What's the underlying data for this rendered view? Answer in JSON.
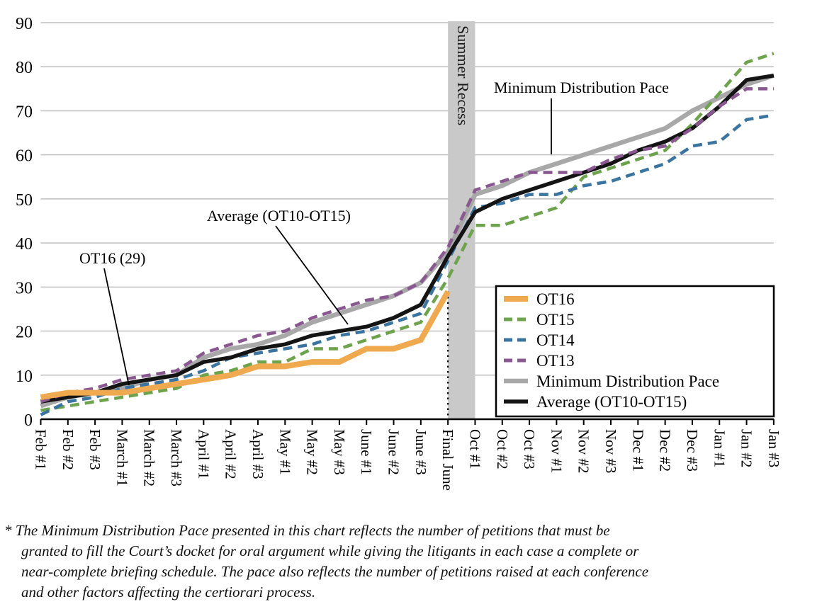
{
  "chart_data": {
    "type": "line",
    "title": "",
    "xlabel": "",
    "ylabel": "",
    "ylim": [
      0,
      90
    ],
    "ytick_step": 10,
    "grid": true,
    "legend_position": "inside-right",
    "categories": [
      "Feb #1",
      "Feb #2",
      "Feb #3",
      "March #1",
      "March #2",
      "March #3",
      "April #1",
      "April #2",
      "April #3",
      "May #1",
      "May #2",
      "May #3",
      "June #1",
      "June #2",
      "June #3",
      "Final June",
      "Oct #1",
      "Oct #2",
      "Oct #3",
      "Nov #1",
      "Nov #2",
      "Nov #3",
      "Dec #1",
      "Dec #2",
      "Dec #3",
      "Jan #1",
      "Jan #2",
      "Jan #3"
    ],
    "series": [
      {
        "name": "OT16",
        "color": "#EFA94F",
        "style": "solid",
        "width": 8,
        "values": [
          5,
          6,
          6,
          6,
          7,
          8,
          9,
          10,
          12,
          12,
          13,
          13,
          16,
          16,
          18,
          29
        ]
      },
      {
        "name": "OT15",
        "color": "#6DA34D",
        "style": "dashed",
        "width": 4.5,
        "values": [
          2,
          3,
          4,
          5,
          6,
          7,
          10,
          11,
          13,
          13,
          16,
          16,
          18,
          20,
          22,
          32,
          44,
          44,
          46,
          48,
          55,
          57,
          59,
          61,
          67,
          74,
          81,
          83
        ]
      },
      {
        "name": "OT14",
        "color": "#3C74A0",
        "style": "dashed",
        "width": 4.5,
        "values": [
          1,
          4,
          5,
          7,
          8,
          9,
          11,
          14,
          15,
          16,
          17,
          19,
          20,
          22,
          24,
          36,
          48,
          49,
          51,
          51,
          53,
          54,
          56,
          58,
          62,
          63,
          68,
          69
        ]
      },
      {
        "name": "OT13",
        "color": "#8A5890",
        "style": "dashed",
        "width": 4.5,
        "values": [
          4,
          6,
          7,
          9,
          10,
          11,
          15,
          17,
          19,
          20,
          23,
          25,
          27,
          28,
          31,
          39,
          52,
          54,
          56,
          56,
          56,
          59,
          61,
          62,
          66,
          71,
          75,
          75
        ]
      },
      {
        "name": "Minimum Distribution Pace",
        "color": "#A8A8A8",
        "style": "solid",
        "width": 6.5,
        "values": [
          3,
          5,
          6,
          7,
          9,
          10,
          14,
          16,
          17,
          19,
          22,
          24,
          26,
          28,
          31,
          38,
          51,
          53,
          56,
          58,
          60,
          62,
          64,
          66,
          70,
          73,
          76,
          78
        ]
      },
      {
        "name": "Average (OT10-OT15)",
        "color": "#141414",
        "style": "solid",
        "width": 5.5,
        "values": [
          4,
          5,
          6,
          8,
          9,
          10,
          13,
          14,
          16,
          17,
          19,
          20,
          21,
          23,
          26,
          37,
          47,
          50,
          52,
          54,
          56,
          58,
          61,
          63,
          66,
          71,
          77,
          78
        ]
      }
    ],
    "band": {
      "label": "Summer Recess",
      "from_category": "Final June",
      "to_category": "Oct #1",
      "color": "#C9C9C9"
    },
    "dotted_marker": {
      "at_category": "Final June",
      "value": 29
    },
    "annotations": [
      {
        "text": "OT16 (29)",
        "label_x": 112,
        "label_y": 372,
        "line": [
          147,
          379,
          182,
          544
        ]
      },
      {
        "text": "Average (OT10-OT15)",
        "label_x": 292,
        "label_y": 312,
        "line": [
          389,
          319,
          491,
          458
        ]
      },
      {
        "text": "Minimum Distribution Pace",
        "label_x": 697,
        "label_y": 131,
        "line": [
          778,
          139,
          778,
          218
        ]
      }
    ],
    "axis_color": "#000000",
    "gridline_color": "#BFBFBF"
  },
  "footnote": {
    "lines": [
      "* The Minimum Distribution Pace presented in this chart reflects the number of petitions that must be",
      "granted to fill the Court’s docket for oral argument while giving the litigants in each case a complete or",
      "near-complete briefing schedule. The pace also reflects the number of petitions raised at each conference",
      "and other factors affecting the certiorari process."
    ]
  }
}
